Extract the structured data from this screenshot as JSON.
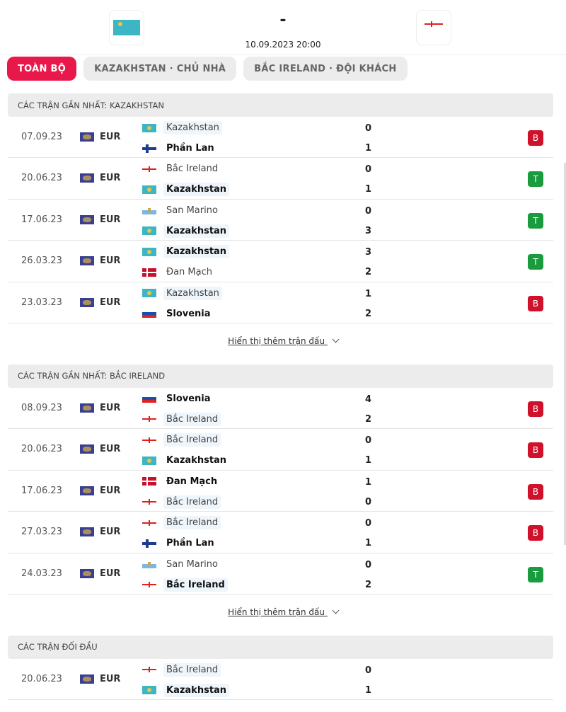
{
  "header": {
    "home_flag": "kz",
    "away_flag": "ni",
    "score": "-",
    "datetime": "10.09.2023 20:00"
  },
  "tabs": [
    {
      "label": "TOÀN BỘ",
      "active": true
    },
    {
      "label": "KAZAKHSTAN · CHỦ NHÀ"
    },
    {
      "label": "BẮC IRELAND · ĐỘI KHÁCH"
    }
  ],
  "colors": {
    "accent": "#e8194a",
    "loss": "#d0112b",
    "win": "#1a9c3e"
  },
  "sections": [
    {
      "title": "CÁC TRẬN GẦN NHẤT: KAZAKHSTAN",
      "more": "Hiển thị thêm trận đấu",
      "matches": [
        {
          "date": "07.09.23",
          "comp": "EUR",
          "home": {
            "name": "Kazakhstan",
            "flag": "kz",
            "hl": true,
            "win": false
          },
          "away": {
            "name": "Phần Lan",
            "flag": "fi",
            "hl": false,
            "win": true
          },
          "hg": "0",
          "ag": "1",
          "result": "B"
        },
        {
          "date": "20.06.23",
          "comp": "EUR",
          "home": {
            "name": "Bắc Ireland",
            "flag": "ni",
            "hl": false,
            "win": false
          },
          "away": {
            "name": "Kazakhstan",
            "flag": "kz",
            "hl": true,
            "win": true
          },
          "hg": "0",
          "ag": "1",
          "result": "T"
        },
        {
          "date": "17.06.23",
          "comp": "EUR",
          "home": {
            "name": "San Marino",
            "flag": "sm",
            "hl": false,
            "win": false
          },
          "away": {
            "name": "Kazakhstan",
            "flag": "kz",
            "hl": true,
            "win": true
          },
          "hg": "0",
          "ag": "3",
          "result": "T"
        },
        {
          "date": "26.03.23",
          "comp": "EUR",
          "home": {
            "name": "Kazakhstan",
            "flag": "kz",
            "hl": true,
            "win": true
          },
          "away": {
            "name": "Đan Mạch",
            "flag": "dk",
            "hl": false,
            "win": false
          },
          "hg": "3",
          "ag": "2",
          "result": "T"
        },
        {
          "date": "23.03.23",
          "comp": "EUR",
          "home": {
            "name": "Kazakhstan",
            "flag": "kz",
            "hl": true,
            "win": false
          },
          "away": {
            "name": "Slovenia",
            "flag": "si",
            "hl": false,
            "win": true
          },
          "hg": "1",
          "ag": "2",
          "result": "B"
        }
      ]
    },
    {
      "title": "CÁC TRẬN GẦN NHẤT: BẮC IRELAND",
      "more": "Hiển thị thêm trận đấu",
      "matches": [
        {
          "date": "08.09.23",
          "comp": "EUR",
          "home": {
            "name": "Slovenia",
            "flag": "si",
            "hl": false,
            "win": true
          },
          "away": {
            "name": "Bắc Ireland",
            "flag": "ni",
            "hl": true,
            "win": false
          },
          "hg": "4",
          "ag": "2",
          "result": "B"
        },
        {
          "date": "20.06.23",
          "comp": "EUR",
          "home": {
            "name": "Bắc Ireland",
            "flag": "ni",
            "hl": true,
            "win": false
          },
          "away": {
            "name": "Kazakhstan",
            "flag": "kz",
            "hl": false,
            "win": true
          },
          "hg": "0",
          "ag": "1",
          "result": "B"
        },
        {
          "date": "17.06.23",
          "comp": "EUR",
          "home": {
            "name": "Đan Mạch",
            "flag": "dk",
            "hl": false,
            "win": true
          },
          "away": {
            "name": "Bắc Ireland",
            "flag": "ni",
            "hl": true,
            "win": false
          },
          "hg": "1",
          "ag": "0",
          "result": "B"
        },
        {
          "date": "27.03.23",
          "comp": "EUR",
          "home": {
            "name": "Bắc Ireland",
            "flag": "ni",
            "hl": true,
            "win": false
          },
          "away": {
            "name": "Phần Lan",
            "flag": "fi",
            "hl": false,
            "win": true
          },
          "hg": "0",
          "ag": "1",
          "result": "B"
        },
        {
          "date": "24.03.23",
          "comp": "EUR",
          "home": {
            "name": "San Marino",
            "flag": "sm",
            "hl": false,
            "win": false
          },
          "away": {
            "name": "Bắc Ireland",
            "flag": "ni",
            "hl": true,
            "win": true
          },
          "hg": "0",
          "ag": "2",
          "result": "T"
        }
      ]
    },
    {
      "title": "CÁC TRẬN ĐỐI ĐẦU",
      "matches": [
        {
          "date": "20.06.23",
          "comp": "EUR",
          "home": {
            "name": "Bắc Ireland",
            "flag": "ni",
            "hl": true,
            "win": false
          },
          "away": {
            "name": "Kazakhstan",
            "flag": "kz",
            "hl": true,
            "win": true
          },
          "hg": "0",
          "ag": "1"
        }
      ]
    }
  ]
}
